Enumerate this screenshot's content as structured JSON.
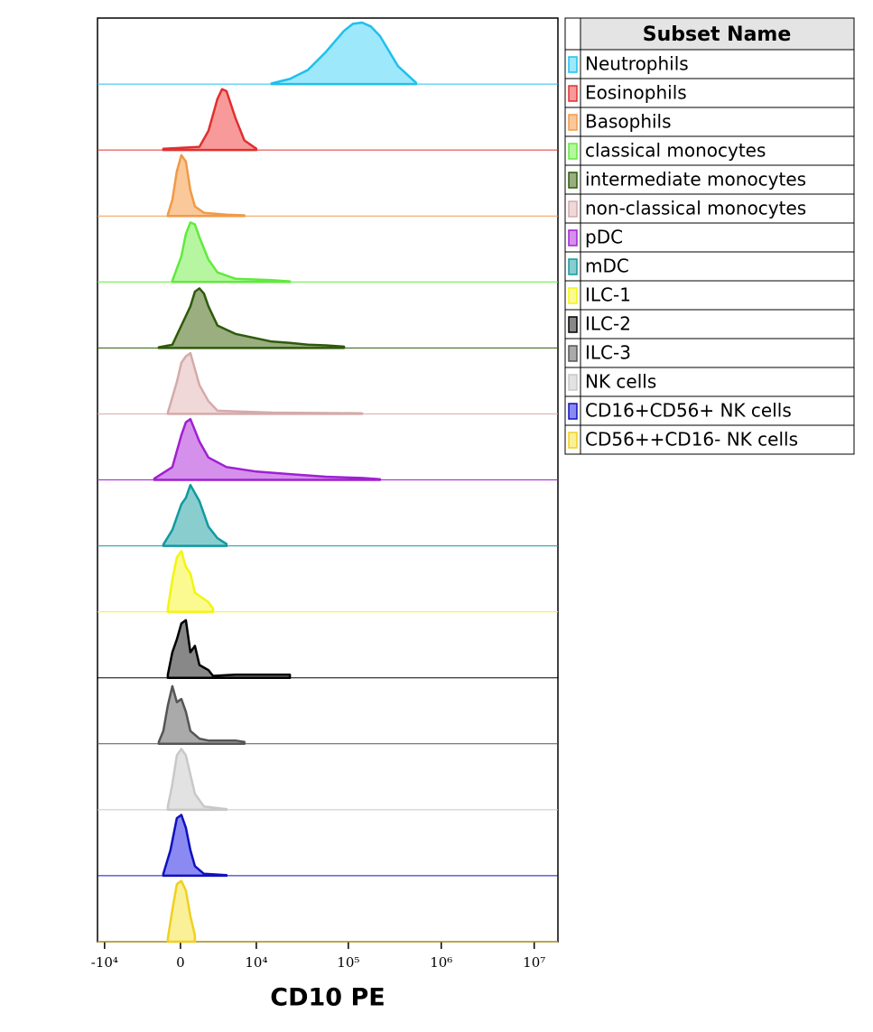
{
  "chart_data": {
    "type": "ridgeline",
    "x_label": "CD10 PE",
    "legend_title": "Subset Name",
    "xscale": "arcsinh",
    "xlim": [
      -12000,
      18000000
    ],
    "xticks": [
      {
        "value": -10000,
        "label": "-10⁴"
      },
      0,
      {
        "value": 10000,
        "label": "10⁴"
      },
      {
        "value": 100000,
        "label": "10⁵"
      },
      {
        "value": 1000000,
        "label": "10⁶"
      },
      {
        "value": 10000000,
        "label": "10⁷"
      }
    ],
    "ylim": [
      0,
      100
    ],
    "series": [
      {
        "name": "Neutrophils",
        "color": "#1ec0ec",
        "fill": "#9ee8fb",
        "x": [
          14800,
          23400,
          36600,
          57200,
          89700,
          112000,
          140600,
          175000,
          219000,
          342000,
          536000
        ],
        "values": [
          1,
          8,
          22,
          50,
          83,
          94,
          96,
          90,
          75,
          28,
          2
        ]
      },
      {
        "name": "Eosinophils",
        "color": "#e03030",
        "fill": "#f99a9a",
        "x": [
          -1370,
          -280,
          1520,
          2350,
          3290,
          3820,
          4390,
          5710,
          7300,
          9990
        ],
        "values": [
          2,
          3,
          5,
          30,
          80,
          95,
          92,
          50,
          15,
          2
        ]
      },
      {
        "name": "Basophils",
        "color": "#f09a48",
        "fill": "#fbc89a",
        "x": [
          -990,
          -630,
          -280,
          70,
          420,
          780,
          1140,
          1920,
          4390,
          7300
        ],
        "values": [
          2,
          25,
          70,
          95,
          85,
          40,
          15,
          5,
          2,
          1
        ]
      },
      {
        "name": "classical monocytes",
        "color": "#60ea3c",
        "fill": "#b6f6a0",
        "x": [
          -630,
          70,
          420,
          780,
          1140,
          1520,
          2350,
          3290,
          5710,
          14800,
          23400
        ],
        "values": [
          2,
          40,
          75,
          93,
          90,
          70,
          35,
          15,
          5,
          3,
          1
        ]
      },
      {
        "name": "intermediate monocytes",
        "color": "#2e5a0a",
        "fill": "#9aae80",
        "x": [
          -1760,
          -630,
          70,
          780,
          1140,
          1520,
          1920,
          2350,
          3290,
          5710,
          9990,
          14800,
          23400,
          36600,
          57200,
          89700
        ],
        "values": [
          1,
          5,
          35,
          65,
          88,
          93,
          85,
          65,
          35,
          22,
          15,
          10,
          8,
          5,
          4,
          2
        ]
      },
      {
        "name": "non-classical monocytes",
        "color": "#d4aaaa",
        "fill": "#f0d8d8",
        "x": [
          -990,
          -280,
          70,
          420,
          780,
          1140,
          1520,
          2350,
          3290,
          14800,
          140600
        ],
        "values": [
          2,
          50,
          80,
          90,
          95,
          70,
          45,
          20,
          5,
          2,
          1
        ]
      },
      {
        "name": "pDC",
        "color": "#a020d0",
        "fill": "#d590ec",
        "x": [
          -2170,
          -630,
          70,
          420,
          780,
          1520,
          2350,
          4390,
          9990,
          23400,
          57200,
          140600,
          219000
        ],
        "values": [
          2,
          20,
          70,
          90,
          95,
          60,
          35,
          20,
          13,
          9,
          5,
          3,
          1
        ]
      },
      {
        "name": "mDC",
        "color": "#109aa0",
        "fill": "#8acdcf",
        "x": [
          -1370,
          -630,
          70,
          420,
          780,
          1520,
          2350,
          3290,
          4390
        ],
        "values": [
          2,
          25,
          65,
          75,
          95,
          70,
          30,
          12,
          3
        ]
      },
      {
        "name": "ILC-1",
        "color": "#f4f410",
        "fill": "#fafa90",
        "x": [
          -990,
          -630,
          -280,
          70,
          420,
          780,
          1140,
          1520,
          2350,
          2810
        ],
        "values": [
          5,
          50,
          85,
          95,
          70,
          60,
          30,
          25,
          15,
          5
        ]
      },
      {
        "name": "ILC-2",
        "color": "#000000",
        "fill": "#888888",
        "x": [
          -990,
          -630,
          -280,
          70,
          420,
          780,
          1140,
          1520,
          2350,
          2810,
          5710,
          7300,
          23400
        ],
        "values": [
          5,
          40,
          60,
          85,
          90,
          40,
          50,
          20,
          12,
          3,
          5,
          5,
          5
        ]
      },
      {
        "name": "ILC-3",
        "color": "#555555",
        "fill": "#aaaaaa",
        "x": [
          -1760,
          -1370,
          -990,
          -630,
          -280,
          70,
          420,
          780,
          1520,
          2350,
          5710,
          7300
        ],
        "values": [
          3,
          20,
          60,
          90,
          65,
          70,
          50,
          20,
          8,
          5,
          5,
          3
        ]
      },
      {
        "name": "NK cells",
        "color": "#c8c8c8",
        "fill": "#e2e2e2",
        "x": [
          -990,
          -630,
          -280,
          70,
          420,
          780,
          1140,
          1920,
          4390
        ],
        "values": [
          5,
          40,
          85,
          95,
          85,
          55,
          25,
          5,
          1
        ]
      },
      {
        "name": "CD16+CD56+ NK cells",
        "color": "#1010c0",
        "fill": "#8a8af2",
        "x": [
          -1370,
          -780,
          -280,
          70,
          420,
          780,
          1140,
          1920,
          4390
        ],
        "values": [
          3,
          40,
          90,
          95,
          75,
          40,
          15,
          3,
          1
        ]
      },
      {
        "name": "CD56++CD16- NK cells",
        "color": "#f0d020",
        "fill": "#faf098",
        "x": [
          -990,
          -630,
          -280,
          70,
          420,
          780,
          1140
        ],
        "values": [
          5,
          50,
          90,
          95,
          80,
          40,
          10
        ]
      }
    ]
  }
}
